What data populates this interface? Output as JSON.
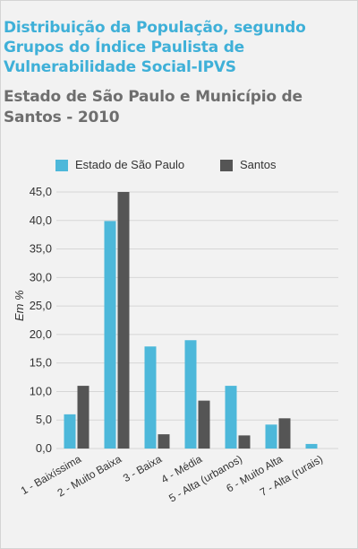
{
  "title": "Distribuição da População, segundo Grupos do Índice Paulista de Vulnerabilidade Social-IPVS",
  "subtitle": "Estado de São Paulo e Município de Santos - 2010",
  "colors": {
    "estado": "#4db8da",
    "santos": "#555555",
    "grid": "#d6d6d6",
    "title": "#3fb0d8"
  },
  "chart_data": {
    "type": "bar",
    "title": "Distribuição da População, segundo Grupos do Índice Paulista de Vulnerabilidade Social-IPVS",
    "subtitle": "Estado de São Paulo e Município de Santos - 2010",
    "ylabel": "Em %",
    "xlabel": "",
    "ylim": [
      0,
      45
    ],
    "yticks": [
      "0,0",
      "5,0",
      "10,0",
      "15,0",
      "20,0",
      "25,0",
      "30,0",
      "35,0",
      "40,0",
      "45,0"
    ],
    "grid": true,
    "legend_position": "top",
    "categories": [
      "1 - Baixíssima",
      "2 - Muito Baixa",
      "3 - Baixa",
      "4 - Média",
      "5 - Alta (urbanos)",
      "6 - Muito Alta",
      "7 - Alta (rurais)"
    ],
    "series": [
      {
        "name": "Estado de São Paulo",
        "values": [
          6.0,
          39.9,
          17.9,
          19.0,
          11.0,
          4.2,
          0.8
        ]
      },
      {
        "name": "Santos",
        "values": [
          11.0,
          45.0,
          2.5,
          8.4,
          2.3,
          5.3,
          0.0
        ]
      }
    ]
  }
}
